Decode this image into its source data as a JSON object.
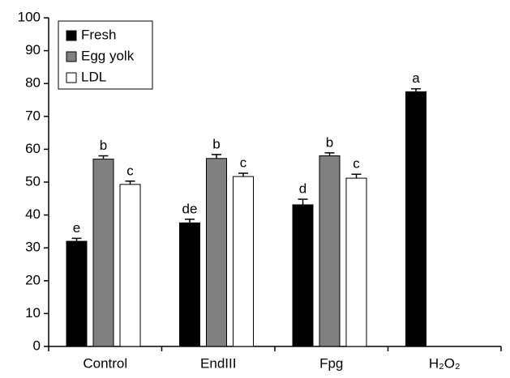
{
  "chart_data": {
    "type": "bar",
    "categories": [
      "Control",
      "EndIII",
      "Fpg",
      "H₂O₂"
    ],
    "series": [
      {
        "name": "Fresh",
        "color": "#000000",
        "values": [
          32,
          37.6,
          43.1,
          77.5
        ],
        "errors": [
          0.9,
          1.1,
          1.7,
          0.9
        ],
        "letters": [
          "e",
          "de",
          "d",
          "a"
        ]
      },
      {
        "name": "Egg yolk",
        "color": "#808080",
        "values": [
          57,
          57.2,
          58,
          null
        ],
        "errors": [
          1,
          1.2,
          0.9,
          null
        ],
        "letters": [
          "b",
          "b",
          "b",
          null
        ]
      },
      {
        "name": "LDL",
        "color": "#ffffff",
        "values": [
          49.3,
          51.7,
          51.2,
          null
        ],
        "errors": [
          1,
          1,
          1.2,
          null
        ],
        "letters": [
          "c",
          "c",
          "c",
          null
        ]
      }
    ],
    "ylim": [
      0,
      100
    ],
    "yticks": [
      0,
      10,
      20,
      30,
      40,
      50,
      60,
      70,
      80,
      90,
      100
    ],
    "legend": "upper left"
  }
}
